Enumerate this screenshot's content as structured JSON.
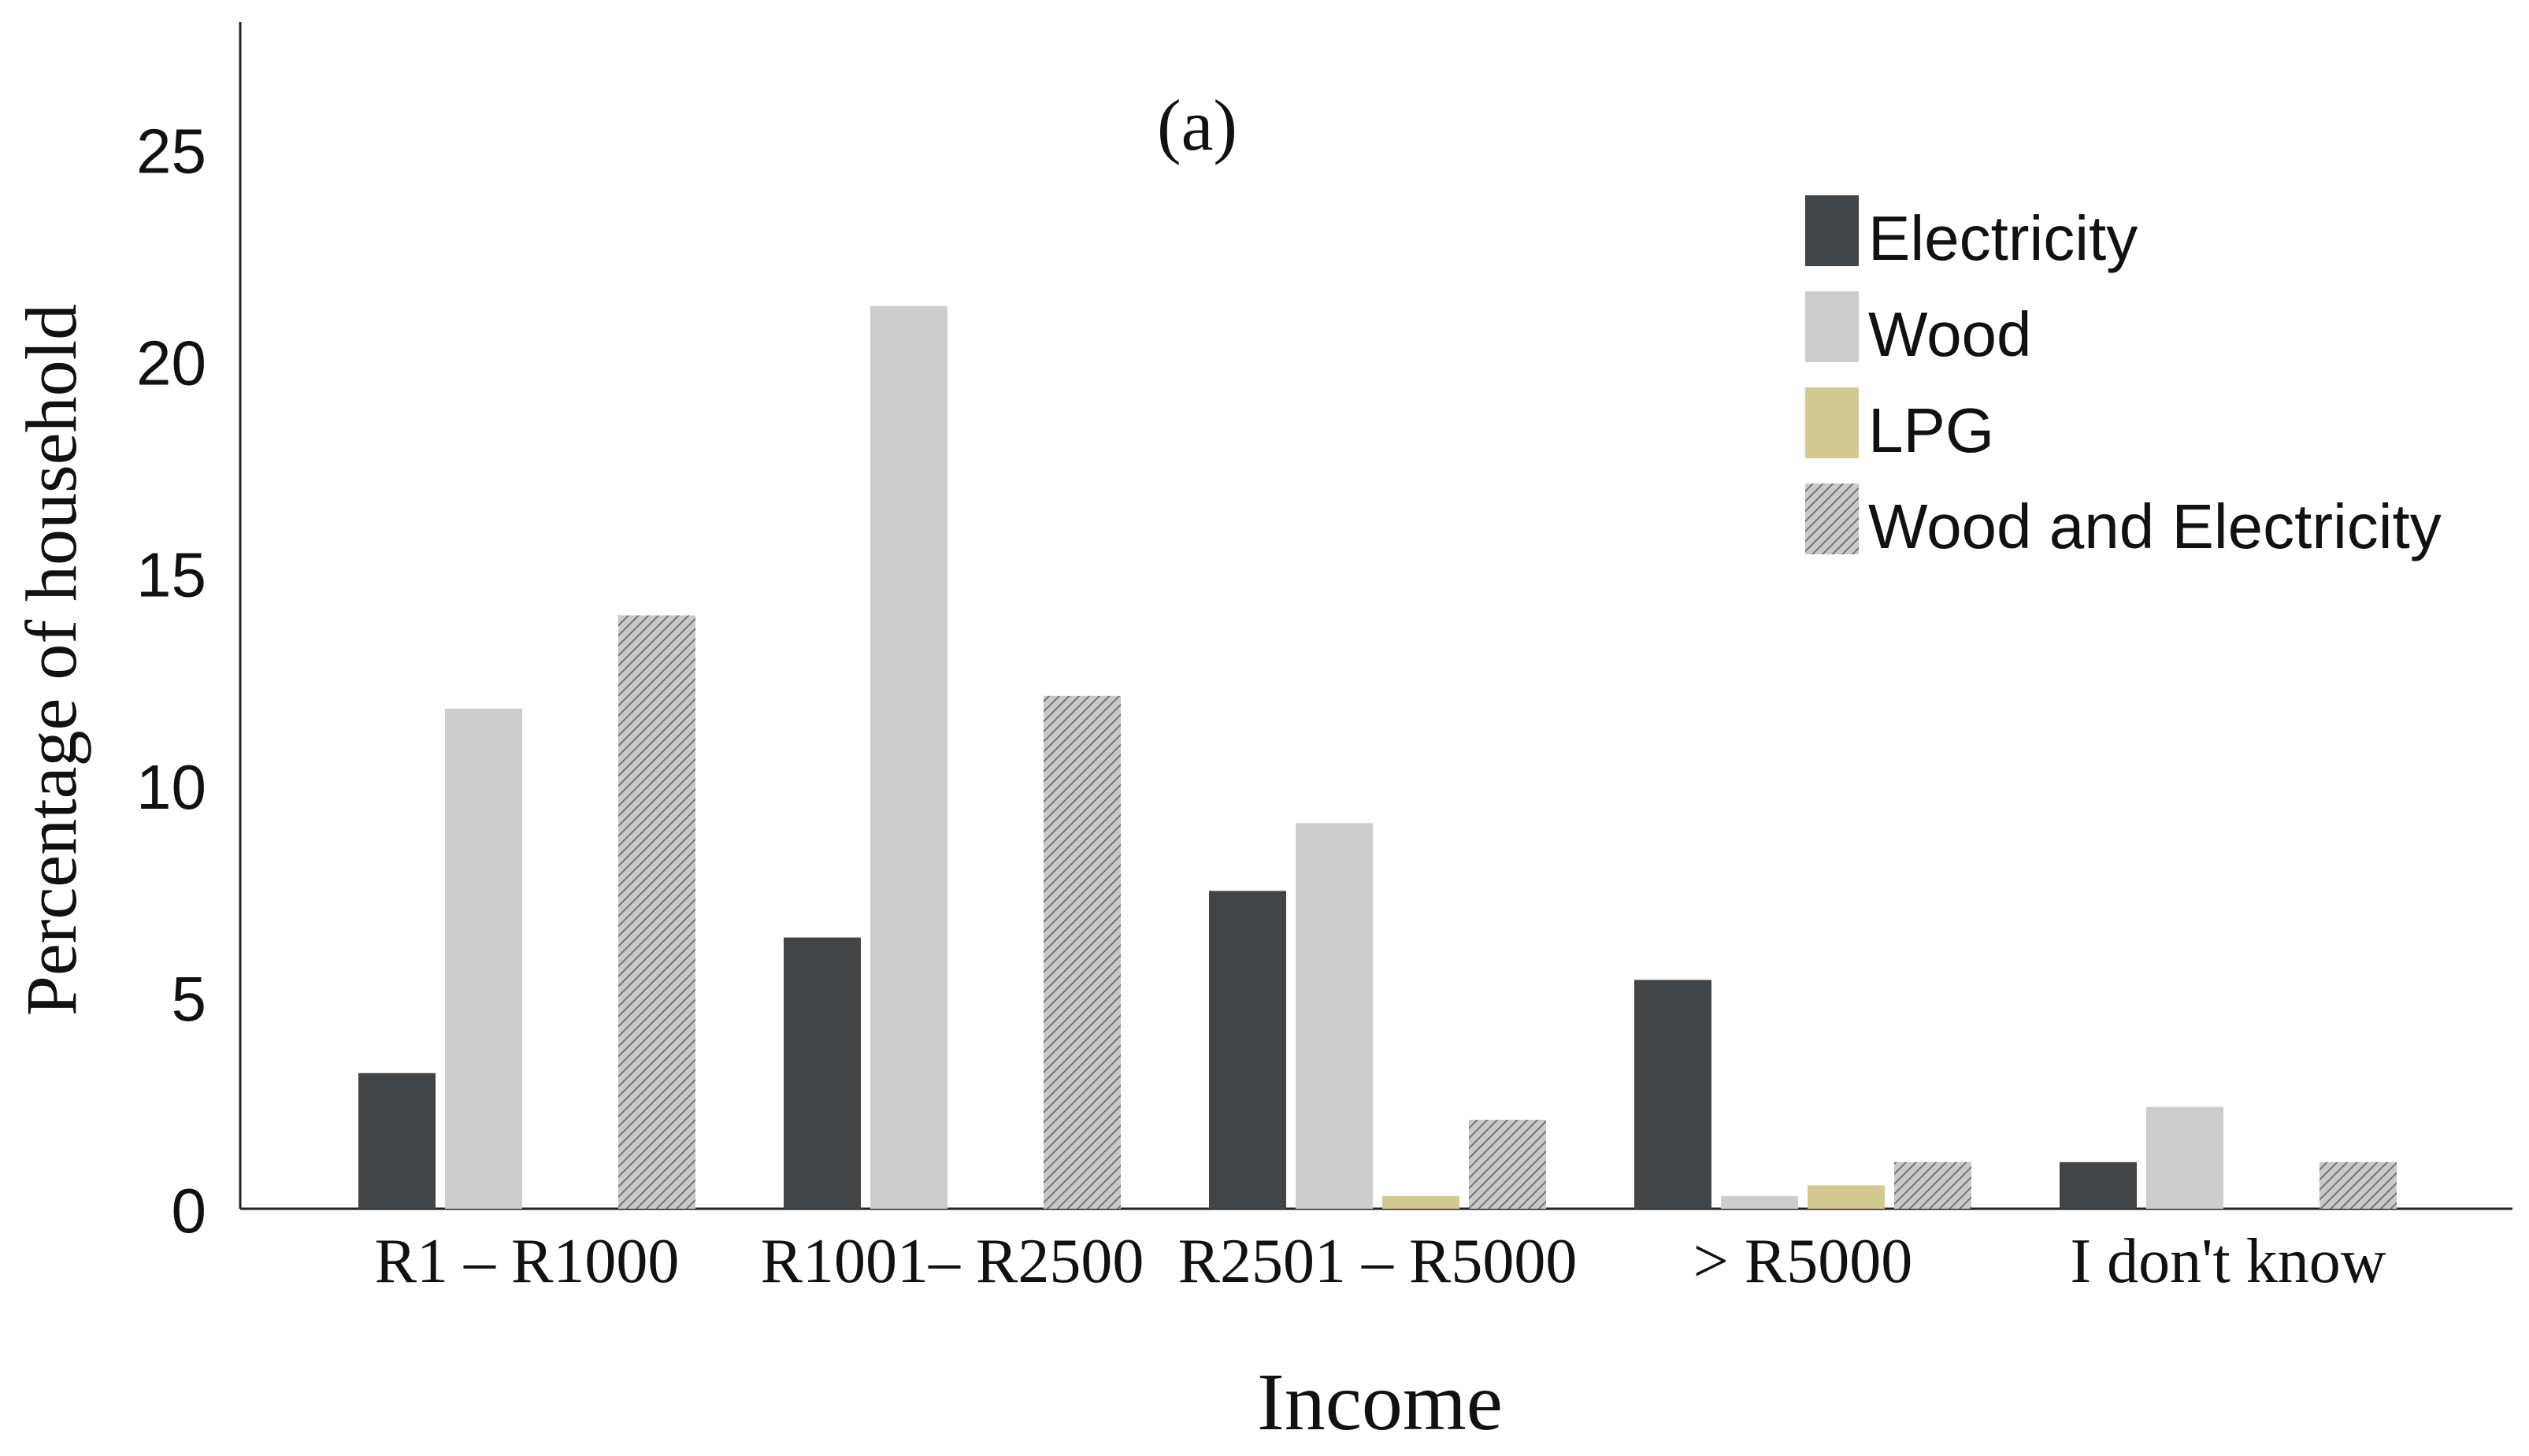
{
  "chart_data": {
    "type": "bar",
    "title": "(a)",
    "xlabel": "Income",
    "ylabel": "Percentage of household",
    "ylim": [
      0,
      28
    ],
    "yticks": [
      0,
      5,
      10,
      15,
      20,
      25
    ],
    "categories": [
      "R1 – R1000",
      "R1001– R2500",
      "R2501 – R5000",
      "> R5000",
      "I don't know"
    ],
    "series": [
      {
        "name": "Electricity",
        "color": "#434446",
        "pattern": "solid",
        "values": [
          3.2,
          6.4,
          7.5,
          5.4,
          1.1
        ]
      },
      {
        "name": "Wood",
        "color": "#cdcdcd",
        "pattern": "solid",
        "values": [
          11.8,
          21.3,
          9.1,
          0.3,
          2.4
        ]
      },
      {
        "name": "LPG",
        "color": "#d4ca91",
        "pattern": "solid",
        "values": [
          0,
          0,
          0.3,
          0.55,
          0
        ]
      },
      {
        "name": "Wood and Electricity",
        "color": "#b5b5b5",
        "pattern": "hatch",
        "values": [
          14.0,
          12.1,
          2.1,
          1.1,
          1.1
        ]
      }
    ],
    "legend_position": "top-right",
    "grid": false
  }
}
